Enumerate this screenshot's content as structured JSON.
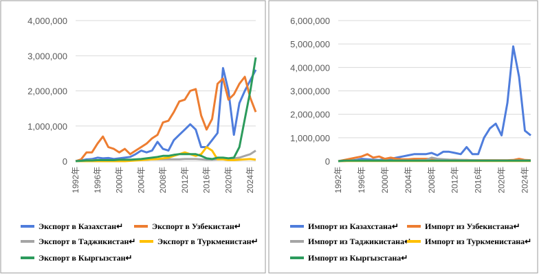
{
  "chart_data": [
    {
      "type": "line",
      "categories": [
        "1992年",
        null,
        null,
        null,
        "1996年",
        null,
        null,
        null,
        "2000年",
        null,
        null,
        null,
        "2004年",
        null,
        null,
        null,
        "2008年",
        null,
        null,
        null,
        "2012年",
        null,
        null,
        null,
        "2016年",
        null,
        null,
        null,
        "2020年",
        null,
        null,
        null,
        "2024年",
        null
      ],
      "ylim": [
        0,
        4000000
      ],
      "yticks": [
        0,
        {
          "value": 1000000,
          "label": "1,000,000"
        },
        {
          "value": 2000000,
          "label": "2,000,000"
        },
        {
          "value": 3000000,
          "label": "3,000,000"
        },
        {
          "value": 4000000,
          "label": "4,000,000"
        }
      ],
      "grid": true,
      "series": [
        {
          "name": "Экспорт в Казахстан↵",
          "color": "#4f7ddc",
          "values": [
            0,
            20000,
            50000,
            60000,
            100000,
            80000,
            90000,
            60000,
            80000,
            100000,
            120000,
            200000,
            300000,
            250000,
            300000,
            550000,
            350000,
            300000,
            600000,
            750000,
            900000,
            1050000,
            900000,
            400000,
            400000,
            600000,
            800000,
            2650000,
            2000000,
            750000,
            1650000,
            2000000,
            2300000,
            2600000
          ]
        },
        {
          "name": "Экспорт в Узбекистан↵",
          "color": "#ed7d31",
          "values": [
            0,
            50000,
            250000,
            250000,
            500000,
            700000,
            400000,
            350000,
            250000,
            350000,
            200000,
            300000,
            400000,
            500000,
            650000,
            750000,
            1100000,
            1150000,
            1400000,
            1700000,
            1750000,
            2000000,
            2050000,
            1300000,
            900000,
            1200000,
            2200000,
            2350000,
            1750000,
            1900000,
            2200000,
            2400000,
            1800000,
            1400000
          ]
        },
        {
          "name": "Экспорт в Таджикистан↵",
          "color": "#a5a5a5",
          "values": [
            0,
            10000,
            20000,
            30000,
            30000,
            30000,
            30000,
            30000,
            30000,
            30000,
            30000,
            30000,
            40000,
            40000,
            50000,
            50000,
            50000,
            50000,
            50000,
            50000,
            60000,
            60000,
            60000,
            50000,
            40000,
            40000,
            50000,
            60000,
            60000,
            80000,
            100000,
            150000,
            200000,
            300000
          ]
        },
        {
          "name": "Экспорт в Туркменистан↵",
          "color": "#ffc000",
          "values": [
            0,
            0,
            0,
            0,
            0,
            0,
            0,
            0,
            0,
            0,
            10000,
            20000,
            30000,
            40000,
            50000,
            60000,
            80000,
            100000,
            150000,
            200000,
            250000,
            200000,
            150000,
            200000,
            400000,
            300000,
            50000,
            50000,
            30000,
            30000,
            40000,
            50000,
            60000,
            40000
          ]
        },
        {
          "name": "Экспорт в Кыргызстан↵",
          "color": "#2c9b5c",
          "values": [
            0,
            10000,
            20000,
            20000,
            30000,
            30000,
            30000,
            30000,
            40000,
            40000,
            40000,
            50000,
            60000,
            80000,
            100000,
            120000,
            150000,
            150000,
            180000,
            200000,
            200000,
            200000,
            200000,
            150000,
            80000,
            60000,
            100000,
            100000,
            80000,
            100000,
            400000,
            1200000,
            2000000,
            2950000
          ]
        }
      ]
    },
    {
      "type": "line",
      "categories": [
        "1992年",
        null,
        null,
        null,
        "1996年",
        null,
        null,
        null,
        "2000年",
        null,
        null,
        null,
        "2004年",
        null,
        null,
        null,
        "2008年",
        null,
        null,
        null,
        "2012年",
        null,
        null,
        null,
        "2016年",
        null,
        null,
        null,
        "2020年",
        null,
        null,
        null,
        "2024年",
        null
      ],
      "ylim": [
        0,
        6000000
      ],
      "yticks": [
        0,
        {
          "value": 1000000,
          "label": "1,000,000"
        },
        {
          "value": 2000000,
          "label": "2,000,000"
        },
        {
          "value": 3000000,
          "label": "3,000,000"
        },
        {
          "value": 4000000,
          "label": "4,000,000"
        },
        {
          "value": 5000000,
          "label": "5,000,000"
        },
        {
          "value": 6000000,
          "label": "6,000,000"
        }
      ],
      "grid": true,
      "series": [
        {
          "name": "Импорт из Казахстана↵",
          "color": "#4f7ddc",
          "values": [
            0,
            10000,
            20000,
            50000,
            100000,
            80000,
            60000,
            50000,
            80000,
            100000,
            150000,
            200000,
            250000,
            300000,
            300000,
            300000,
            350000,
            250000,
            400000,
            400000,
            350000,
            300000,
            600000,
            300000,
            300000,
            1000000,
            1400000,
            1600000,
            1100000,
            2500000,
            4900000,
            3600000,
            1300000,
            1100000
          ]
        },
        {
          "name": "Импорт из Узбекистана↵",
          "color": "#ed7d31",
          "values": [
            0,
            50000,
            100000,
            150000,
            200000,
            300000,
            150000,
            200000,
            100000,
            150000,
            100000,
            80000,
            80000,
            100000,
            100000,
            100000,
            100000,
            80000,
            60000,
            60000,
            60000,
            50000,
            50000,
            40000,
            40000,
            40000,
            40000,
            40000,
            40000,
            40000,
            50000,
            100000,
            50000,
            40000
          ]
        },
        {
          "name": "Импорт из Таджикистана↵",
          "color": "#a5a5a5",
          "values": [
            0,
            10000,
            20000,
            30000,
            30000,
            30000,
            30000,
            30000,
            30000,
            30000,
            30000,
            30000,
            30000,
            30000,
            40000,
            40000,
            150000,
            100000,
            80000,
            60000,
            50000,
            50000,
            40000,
            40000,
            30000,
            30000,
            30000,
            30000,
            30000,
            30000,
            30000,
            30000,
            30000,
            30000
          ]
        },
        {
          "name": "Импорт из Туркменистана↵",
          "color": "#ffc000",
          "values": [
            0,
            10000,
            10000,
            10000,
            10000,
            10000,
            10000,
            10000,
            10000,
            10000,
            10000,
            10000,
            10000,
            10000,
            10000,
            10000,
            10000,
            10000,
            10000,
            10000,
            10000,
            10000,
            10000,
            10000,
            10000,
            10000,
            10000,
            10000,
            10000,
            10000,
            10000,
            10000,
            10000,
            10000
          ]
        },
        {
          "name": "Импорт из Кыргызстана↵",
          "color": "#2c9b5c",
          "values": [
            0,
            20000,
            20000,
            20000,
            20000,
            20000,
            20000,
            20000,
            20000,
            20000,
            20000,
            20000,
            20000,
            20000,
            20000,
            20000,
            20000,
            20000,
            20000,
            20000,
            20000,
            20000,
            20000,
            20000,
            20000,
            20000,
            20000,
            20000,
            20000,
            20000,
            20000,
            20000,
            20000,
            20000
          ]
        }
      ]
    }
  ]
}
